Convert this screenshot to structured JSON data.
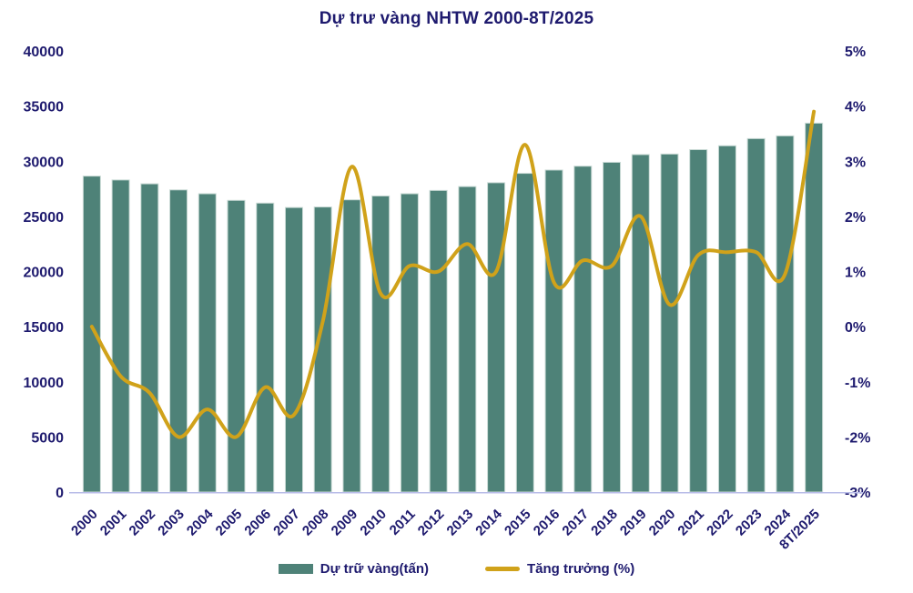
{
  "chart_data": {
    "type": "combo",
    "title": "Dự trư vàng NHTW 2000-8T/2025",
    "categories": [
      "2000",
      "2001",
      "2002",
      "2003",
      "2004",
      "2005",
      "2006",
      "2007",
      "2008",
      "2009",
      "2010",
      "2011",
      "2012",
      "2013",
      "2014",
      "2015",
      "2016",
      "2017",
      "2018",
      "2019",
      "2020",
      "2021",
      "2022",
      "2023",
      "2024",
      "8T/2025"
    ],
    "series": [
      {
        "name": "Dự trữ vàng(tấn)",
        "type": "bar",
        "axis": "left",
        "color": "#4e8278",
        "values": [
          28650,
          28300,
          27950,
          27400,
          27050,
          26450,
          26200,
          25800,
          25850,
          26500,
          26850,
          27050,
          27350,
          27700,
          28050,
          28900,
          29200,
          29550,
          29900,
          30600,
          30650,
          31050,
          31400,
          32050,
          32300,
          33450
        ]
      },
      {
        "name": "Tăng trưởng (%)",
        "type": "line",
        "axis": "right",
        "color": "#d0a21a",
        "values": [
          0.0,
          -0.9,
          -1.2,
          -2.0,
          -1.5,
          -2.0,
          -1.1,
          -1.6,
          0.1,
          2.9,
          0.6,
          1.1,
          1.0,
          1.5,
          1.0,
          3.3,
          0.8,
          1.2,
          1.1,
          2.0,
          0.4,
          1.3,
          1.35,
          1.35,
          0.95,
          3.9
        ]
      }
    ],
    "left_axis": {
      "min": 0,
      "max": 40000,
      "step": 5000,
      "ticks": [
        "0",
        "5000",
        "10000",
        "15000",
        "20000",
        "25000",
        "30000",
        "35000",
        "40000"
      ]
    },
    "right_axis": {
      "min": -3,
      "max": 5,
      "step": 1,
      "ticks": [
        "-3%",
        "-2%",
        "-1%",
        "0%",
        "1%",
        "2%",
        "3%",
        "4%",
        "5%"
      ]
    },
    "grid": false,
    "legend_position": "bottom",
    "xlabel": "",
    "ylabel": ""
  },
  "colors": {
    "bar_fill": "#4e8278",
    "bar_edge": "#c9dad5",
    "line": "#d0a21a",
    "axis_text": "#1e1a6e",
    "baseline": "#b9bde8",
    "background": "#ffffff"
  }
}
